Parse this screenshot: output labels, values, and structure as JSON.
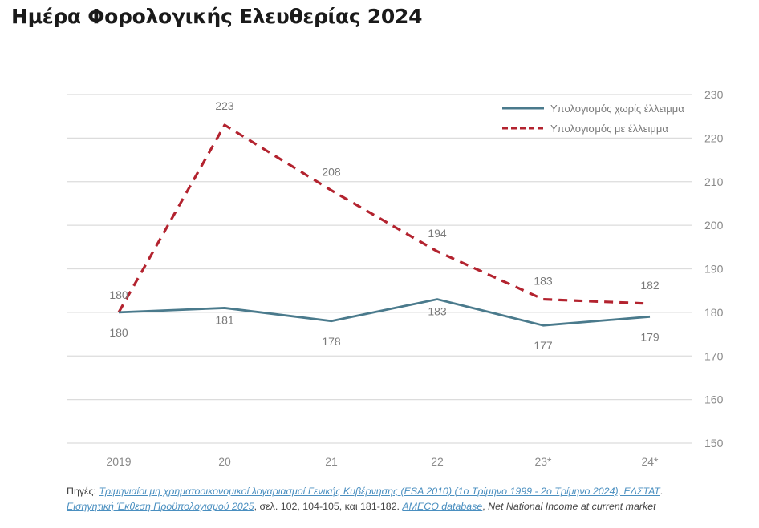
{
  "title": "Ημέρα Φορολογικής Ελευθερίας 2024",
  "chart_data": {
    "type": "line",
    "title": "Ημέρα Φορολογικής Ελευθερίας 2024",
    "xlabel": "",
    "ylabel": "",
    "categories": [
      "2019",
      "20",
      "21",
      "22",
      "23*",
      "24*"
    ],
    "ylim": [
      150,
      230
    ],
    "yticks": [
      150,
      160,
      170,
      180,
      190,
      200,
      210,
      220,
      230
    ],
    "y_axis_side": "right",
    "grid": true,
    "legend_position": "top-right",
    "series": [
      {
        "name": "Υπολογισμός χωρίς έλλειμμα",
        "values": [
          180,
          181,
          178,
          183,
          177,
          179
        ],
        "labels": [
          "180",
          "181",
          "178",
          "183",
          "177",
          "179"
        ],
        "color": "#4a7a8c",
        "style": "solid"
      },
      {
        "name": "Υπολογισμός με έλλειμμα",
        "values": [
          180,
          223,
          208,
          194,
          183,
          182
        ],
        "labels": [
          "180",
          "223",
          "208",
          "194",
          "183",
          "182"
        ],
        "color": "#b3232f",
        "style": "dashed"
      }
    ]
  },
  "sources": {
    "prefix": "Πηγές:",
    "link1": "Τριμηνιαίοι μη χρηματοοικονομικοί λογαριασμοί Γενικής Κυβέρνησης (ESA 2010) (1ο Τρίμηνο 1999 - 2ο Τρίμηνο 2024), ΕΛΣΤΑΤ",
    "after_link1": ".",
    "link2": "Εισηγητική Έκθεση Προϋπολογισμού 2025",
    "after_link2": ", σελ.  102, 104-105, και 181-182. ",
    "link3": "AMECO database",
    "after_link3": ", ",
    "tail": "Net National Income at current market"
  }
}
